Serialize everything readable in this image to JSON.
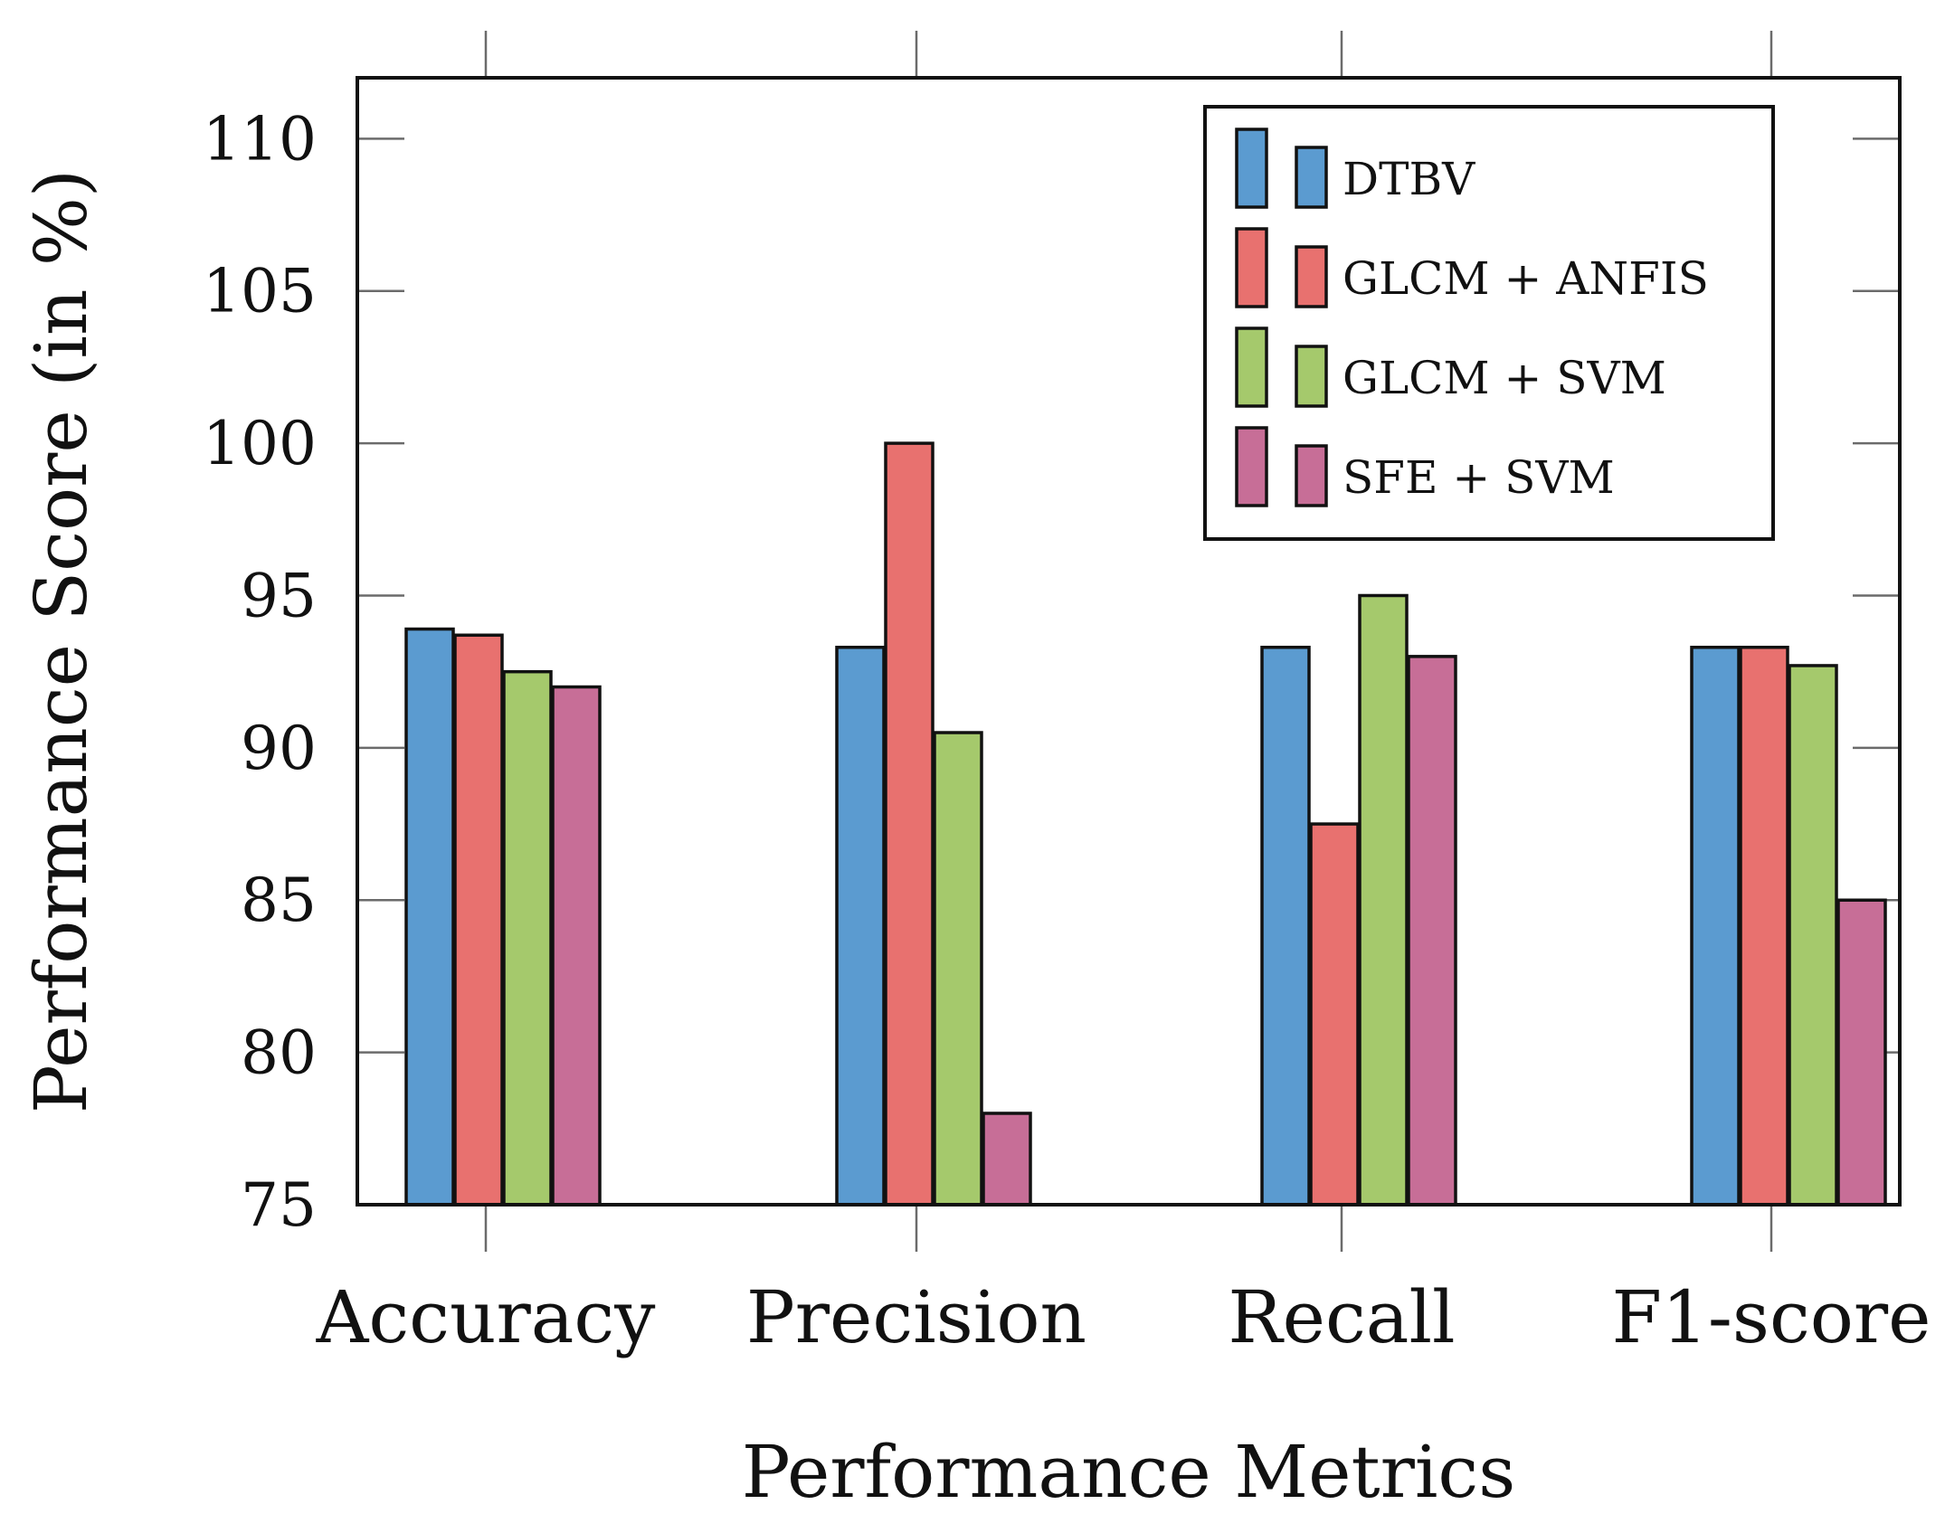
{
  "chart_data": {
    "type": "bar",
    "title": "",
    "xlabel": "Performance Metrics",
    "ylabel": "Performance Score (in %)",
    "categories": [
      "Accuracy",
      "Precision",
      "Recall",
      "F1-score"
    ],
    "ylim": [
      75,
      112
    ],
    "yticks": [
      75,
      80,
      85,
      90,
      95,
      100,
      105,
      110
    ],
    "legend_position": "top-right",
    "series": [
      {
        "name": "DTBV",
        "color": "#5b9bd0",
        "values": [
          93.9,
          93.3,
          93.3,
          93.3
        ]
      },
      {
        "name": "GLCM + ANFIS",
        "color": "#e8716f",
        "values": [
          93.7,
          100,
          87.5,
          93.3
        ]
      },
      {
        "name": "GLCM + SVM",
        "color": "#a5c96c",
        "values": [
          92.5,
          90.5,
          95,
          92.7
        ]
      },
      {
        "name": "SFE + SVM",
        "color": "#c76e97",
        "values": [
          92,
          78,
          93,
          85
        ]
      }
    ]
  }
}
